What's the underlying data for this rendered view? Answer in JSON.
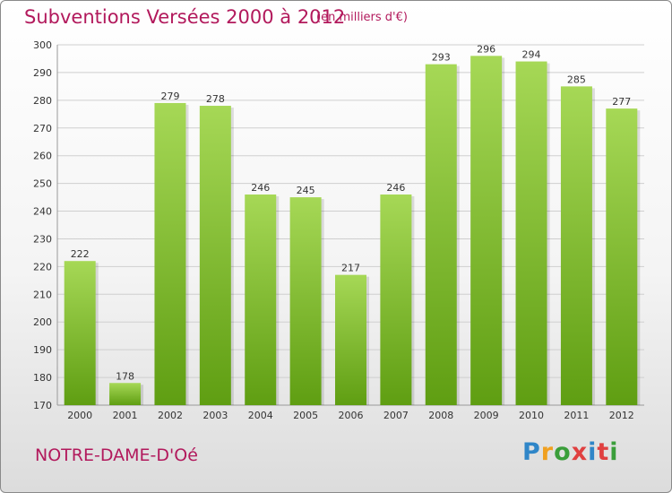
{
  "header": {
    "title": "Subventions Versées 2000 à 2012",
    "unit": "(en milliers d'€)"
  },
  "footer": {
    "place": "NOTRE-DAME-D'Oé",
    "logo": [
      "P",
      "r",
      "o",
      "x",
      "i",
      "t",
      "i"
    ],
    "logo_colors": [
      "#2f86c8",
      "#f0a020",
      "#3a9e3a",
      "#e04040",
      "#2f86c8",
      "#e04040",
      "#3a9e3a"
    ]
  },
  "colors": {
    "bar_top": "#a6d856",
    "bar_bottom": "#5f9e12",
    "grid": "#cfcfcf"
  },
  "chart_data": {
    "type": "bar",
    "title": "Subventions Versées 2000 à 2012",
    "xlabel": "",
    "ylabel": "",
    "categories": [
      "2000",
      "2001",
      "2002",
      "2003",
      "2004",
      "2005",
      "2006",
      "2007",
      "2008",
      "2009",
      "2010",
      "2011",
      "2012"
    ],
    "values": [
      222,
      178,
      279,
      278,
      246,
      245,
      217,
      246,
      293,
      296,
      294,
      285,
      277
    ],
    "ylim": [
      170,
      300
    ],
    "yticks": [
      170,
      180,
      190,
      200,
      210,
      220,
      230,
      240,
      250,
      260,
      270,
      280,
      290,
      300
    ],
    "grid": true,
    "data_labels": true
  }
}
